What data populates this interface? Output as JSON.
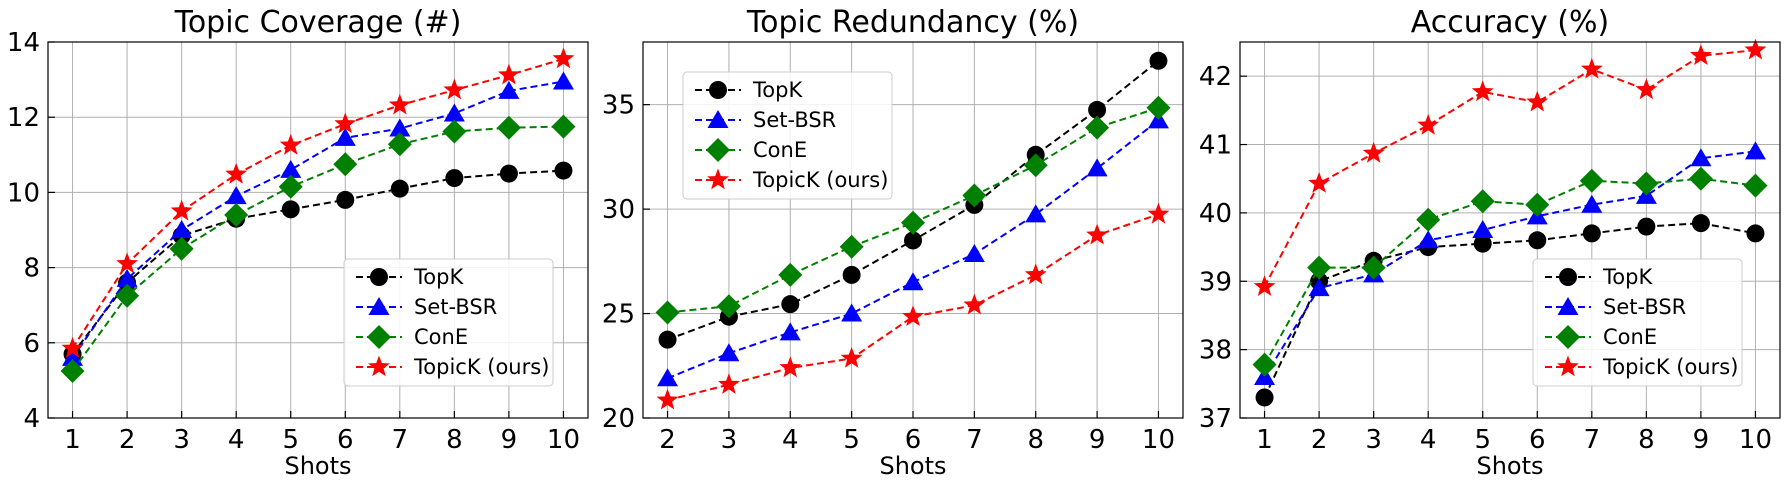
{
  "chart_data": [
    {
      "type": "line",
      "title": "Topic Coverage (#)",
      "xlabel": "Shots",
      "ylabel": "",
      "x": [
        1,
        2,
        3,
        4,
        5,
        6,
        7,
        8,
        9,
        10
      ],
      "xticks": [
        1,
        2,
        3,
        4,
        5,
        6,
        7,
        8,
        9,
        10
      ],
      "xlim": [
        0.55,
        10.45
      ],
      "yticks": [
        4,
        6,
        8,
        10,
        12,
        14
      ],
      "ylim": [
        4,
        14
      ],
      "grid": true,
      "legend_position": "lower-right",
      "series": [
        {
          "name": "TopK",
          "color": "#000000",
          "marker": "circle",
          "x": [
            1,
            2,
            3,
            4,
            5,
            6,
            7,
            8,
            9,
            10
          ],
          "values": [
            5.7,
            7.6,
            8.85,
            9.3,
            9.55,
            9.8,
            10.1,
            10.38,
            10.5,
            10.58
          ]
        },
        {
          "name": "Set-BSR",
          "color": "#0000ff",
          "marker": "triangle",
          "x": [
            1,
            2,
            3,
            4,
            5,
            6,
            7,
            8,
            9,
            10
          ],
          "values": [
            5.6,
            7.7,
            9.0,
            9.9,
            10.6,
            11.45,
            11.7,
            12.1,
            12.7,
            12.95
          ]
        },
        {
          "name": "ConE",
          "color": "#008000",
          "marker": "diamond",
          "x": [
            1,
            2,
            3,
            4,
            5,
            6,
            7,
            8,
            9,
            10
          ],
          "values": [
            5.25,
            7.25,
            8.5,
            9.4,
            10.15,
            10.75,
            11.28,
            11.62,
            11.72,
            11.75
          ]
        },
        {
          "name": "TopicK (ours)",
          "color": "#ff0000",
          "marker": "star",
          "x": [
            1,
            2,
            3,
            4,
            5,
            6,
            7,
            8,
            9,
            10
          ],
          "values": [
            5.85,
            8.1,
            9.5,
            10.48,
            11.25,
            11.82,
            12.32,
            12.72,
            13.12,
            13.55
          ]
        }
      ]
    },
    {
      "type": "line",
      "title": "Topic Redundancy (%)",
      "xlabel": "Shots",
      "ylabel": "",
      "x": [
        2,
        3,
        4,
        5,
        6,
        7,
        8,
        9,
        10
      ],
      "xticks": [
        2,
        3,
        4,
        5,
        6,
        7,
        8,
        9,
        10
      ],
      "xlim": [
        1.6,
        10.4
      ],
      "yticks": [
        20,
        25,
        30,
        35
      ],
      "ylim": [
        20,
        38
      ],
      "grid": true,
      "legend_position": "upper-left",
      "series": [
        {
          "name": "TopK",
          "color": "#000000",
          "marker": "circle",
          "x": [
            2,
            3,
            4,
            5,
            6,
            7,
            8,
            9,
            10
          ],
          "values": [
            23.75,
            24.85,
            25.45,
            26.85,
            28.5,
            30.2,
            32.6,
            34.75,
            37.1
          ]
        },
        {
          "name": "Set-BSR",
          "color": "#0000ff",
          "marker": "triangle",
          "x": [
            2,
            3,
            4,
            5,
            6,
            7,
            8,
            9,
            10
          ],
          "values": [
            21.9,
            23.1,
            24.1,
            25.0,
            26.5,
            27.85,
            29.75,
            31.95,
            34.25
          ]
        },
        {
          "name": "ConE",
          "color": "#008000",
          "marker": "diamond",
          "x": [
            2,
            3,
            4,
            5,
            6,
            7,
            8,
            9,
            10
          ],
          "values": [
            25.05,
            25.35,
            26.85,
            28.2,
            29.35,
            30.65,
            32.1,
            33.9,
            34.85
          ]
        },
        {
          "name": "TopicK (ours)",
          "color": "#ff0000",
          "marker": "star",
          "x": [
            2,
            3,
            4,
            5,
            6,
            7,
            8,
            9,
            10
          ],
          "values": [
            20.85,
            21.6,
            22.4,
            22.85,
            24.85,
            25.4,
            26.85,
            28.75,
            29.75
          ]
        }
      ]
    },
    {
      "type": "line",
      "title": "Accuracy (%)",
      "xlabel": "Shots",
      "ylabel": "",
      "x": [
        1,
        2,
        3,
        4,
        5,
        6,
        7,
        8,
        9,
        10
      ],
      "xticks": [
        1,
        2,
        3,
        4,
        5,
        6,
        7,
        8,
        9,
        10
      ],
      "xlim": [
        0.55,
        10.45
      ],
      "yticks": [
        37,
        38,
        39,
        40,
        41,
        42
      ],
      "ylim": [
        37,
        42.5
      ],
      "grid": true,
      "legend_position": "lower-right",
      "series": [
        {
          "name": "TopK",
          "color": "#000000",
          "marker": "circle",
          "x": [
            1,
            2,
            3,
            4,
            5,
            6,
            7,
            8,
            9,
            10
          ],
          "values": [
            37.3,
            39.0,
            39.3,
            39.5,
            39.55,
            39.6,
            39.7,
            39.8,
            39.85,
            39.7
          ]
        },
        {
          "name": "Set-BSR",
          "color": "#0000ff",
          "marker": "triangle",
          "x": [
            1,
            2,
            3,
            4,
            5,
            6,
            7,
            8,
            9,
            10
          ],
          "values": [
            37.6,
            38.9,
            39.1,
            39.6,
            39.75,
            39.95,
            40.12,
            40.25,
            40.8,
            40.9
          ]
        },
        {
          "name": "ConE",
          "color": "#008000",
          "marker": "diamond",
          "x": [
            1,
            2,
            3,
            4,
            5,
            6,
            7,
            8,
            9,
            10
          ],
          "values": [
            37.78,
            39.2,
            39.2,
            39.9,
            40.17,
            40.12,
            40.47,
            40.43,
            40.5,
            40.4
          ]
        },
        {
          "name": "TopicK (ours)",
          "color": "#ff0000",
          "marker": "star",
          "x": [
            1,
            2,
            3,
            4,
            5,
            6,
            7,
            8,
            9,
            10
          ],
          "values": [
            38.92,
            40.43,
            40.87,
            41.28,
            41.77,
            41.62,
            42.1,
            41.8,
            42.3,
            42.38
          ]
        }
      ]
    }
  ]
}
